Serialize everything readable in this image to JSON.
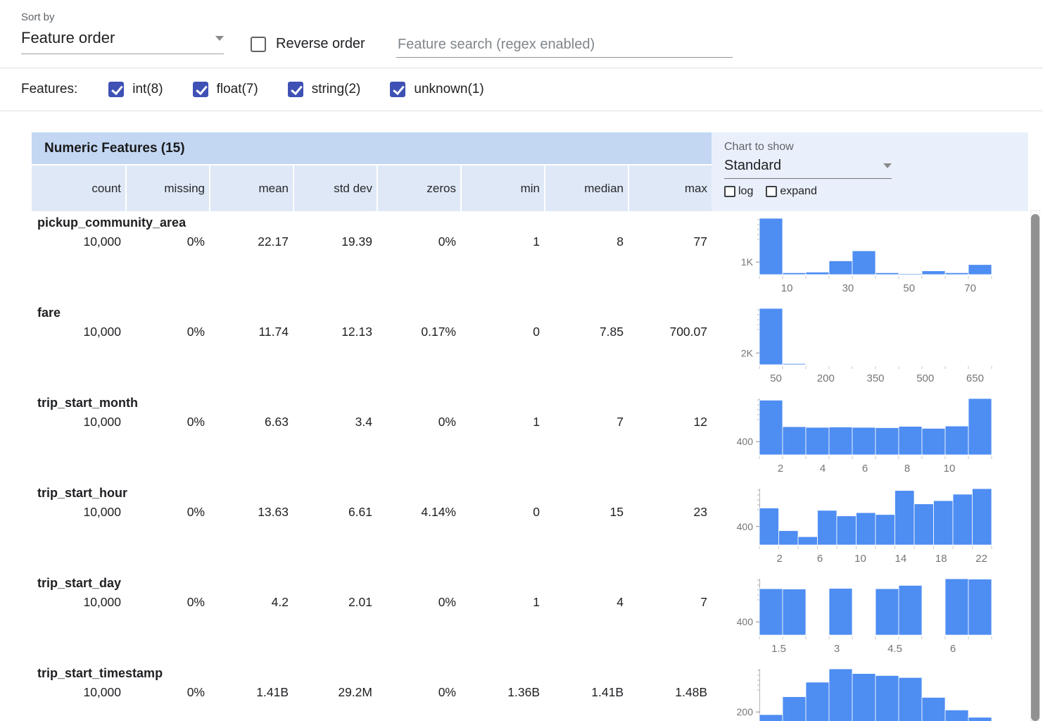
{
  "toolbar": {
    "sort_by_label": "Sort by",
    "sort_by_value": "Feature order",
    "reverse_order_label": "Reverse order",
    "search_placeholder": "Feature search (regex enabled)"
  },
  "features_filter": {
    "label": "Features:",
    "items": [
      {
        "label": "int(8)",
        "checked": true
      },
      {
        "label": "float(7)",
        "checked": true
      },
      {
        "label": "string(2)",
        "checked": true
      },
      {
        "label": "unknown(1)",
        "checked": true
      }
    ]
  },
  "table": {
    "title": "Numeric Features (15)",
    "columns": [
      "count",
      "missing",
      "mean",
      "std dev",
      "zeros",
      "min",
      "median",
      "max"
    ],
    "chart_controls": {
      "label": "Chart to show",
      "selected": "Standard",
      "log_checkbox": {
        "label": "log",
        "checked": false
      },
      "expand_checkbox": {
        "label": "expand",
        "checked": false
      }
    },
    "rows": [
      {
        "name": "pickup_community_area",
        "values": [
          "10,000",
          "0%",
          "22.17",
          "19.39",
          "0%",
          "1",
          "8",
          "77"
        ]
      },
      {
        "name": "fare",
        "values": [
          "10,000",
          "0%",
          "11.74",
          "12.13",
          "0.17%",
          "0",
          "7.85",
          "700.07"
        ]
      },
      {
        "name": "trip_start_month",
        "values": [
          "10,000",
          "0%",
          "6.63",
          "3.4",
          "0%",
          "1",
          "7",
          "12"
        ]
      },
      {
        "name": "trip_start_hour",
        "values": [
          "10,000",
          "0%",
          "13.63",
          "6.61",
          "4.14%",
          "0",
          "15",
          "23"
        ]
      },
      {
        "name": "trip_start_day",
        "values": [
          "10,000",
          "0%",
          "4.2",
          "2.01",
          "0%",
          "1",
          "4",
          "7"
        ]
      },
      {
        "name": "trip_start_timestamp",
        "values": [
          "10,000",
          "0%",
          "1.41B",
          "29.2M",
          "0%",
          "1.36B",
          "1.41B",
          "1.48B"
        ]
      }
    ]
  },
  "chart_data": [
    {
      "type": "bar",
      "feature": "pickup_community_area",
      "x_range": [
        1,
        77
      ],
      "x_ticks": [
        10,
        30,
        50,
        70
      ],
      "y_tick": {
        "label": "1K",
        "value": 1000
      },
      "bucket_counts": [
        4500,
        150,
        200,
        1100,
        1900,
        150,
        80,
        300,
        150,
        800
      ]
    },
    {
      "type": "bar",
      "feature": "fare",
      "x_range": [
        0,
        700
      ],
      "x_ticks": [
        50,
        200,
        350,
        500,
        650
      ],
      "y_tick": {
        "label": "2K",
        "value": 2000
      },
      "bucket_counts": [
        9600,
        200,
        80,
        50,
        30,
        15,
        10,
        5,
        5,
        5
      ]
    },
    {
      "type": "bar",
      "feature": "trip_start_month",
      "x_range": [
        1,
        12
      ],
      "x_ticks": [
        2,
        4,
        6,
        8,
        10
      ],
      "y_tick": {
        "label": "400",
        "value": 400
      },
      "bucket_counts": [
        1650,
        850,
        830,
        840,
        830,
        820,
        860,
        800,
        870,
        1700
      ]
    },
    {
      "type": "bar",
      "feature": "trip_start_hour",
      "x_range": [
        0,
        23
      ],
      "x_ticks": [
        2,
        6,
        10,
        14,
        18,
        22
      ],
      "y_tick": {
        "label": "400",
        "value": 400
      },
      "bucket_counts": [
        800,
        310,
        180,
        750,
        630,
        700,
        660,
        1180,
        890,
        960,
        1100,
        1220
      ]
    },
    {
      "type": "bar",
      "feature": "trip_start_day",
      "x_range": [
        1,
        7
      ],
      "x_ticks": [
        1.5,
        3,
        4.5,
        6
      ],
      "y_tick": {
        "label": "400",
        "value": 400
      },
      "bucket_counts": [
        1400,
        1390,
        0,
        1410,
        0,
        1400,
        1500,
        0,
        1700,
        1690
      ]
    },
    {
      "type": "bar",
      "feature": "trip_start_timestamp",
      "x_range": [
        1360000000,
        1480000000
      ],
      "x_ticks": [],
      "y_tick": {
        "label": "200",
        "value": 200
      },
      "bucket_counts": [
        160,
        430,
        650,
        850,
        780,
        750,
        720,
        420,
        230,
        120
      ]
    }
  ],
  "colors": {
    "bar": "#4e8df2",
    "checkbox_checked": "#3f51b5",
    "header_title_bg": "#c3d7f3",
    "header_col_bg": "#dfe8f6",
    "chart_panel_bg": "#eaf0fb"
  }
}
